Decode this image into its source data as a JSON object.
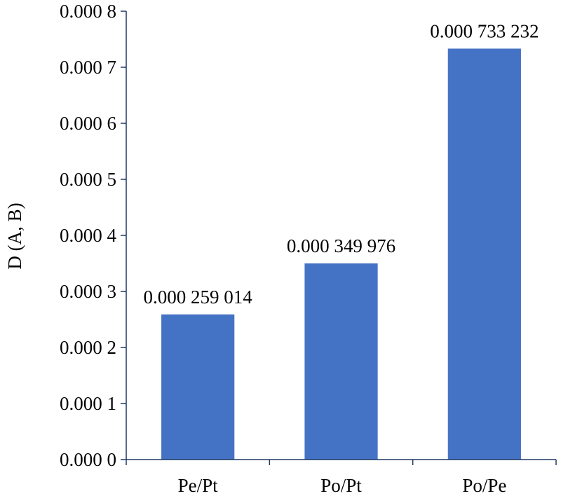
{
  "chart_data": {
    "type": "bar",
    "title": "",
    "xlabel": "",
    "ylabel": "D (A, B)",
    "ylim": [
      0,
      0.0008
    ],
    "yticks": [
      0,
      0.0001,
      0.0002,
      0.0003,
      0.0004,
      0.0005,
      0.0006,
      0.0007,
      0.0008
    ],
    "ytick_labels": [
      "0.000 0",
      "0.000 1",
      "0.000 2",
      "0.000 3",
      "0.000 4",
      "0.000 5",
      "0.000 6",
      "0.000 7",
      "0.000 8"
    ],
    "categories": [
      "Pe/Pt",
      "Po/Pt",
      "Po/Pe"
    ],
    "values": [
      0.000259014,
      0.000349976,
      0.000733232
    ],
    "data_labels": [
      "0.000 259 014",
      "0.000 349 976",
      "0.000 733 232"
    ],
    "bar_color": "#4472c4",
    "grid": false,
    "legend": "none"
  }
}
